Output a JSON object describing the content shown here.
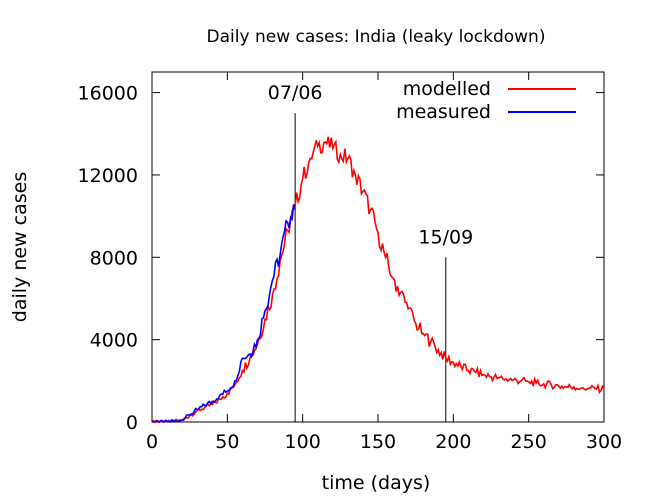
{
  "chart_data": {
    "type": "line",
    "title": "Daily new cases: India (leaky lockdown)",
    "xlabel": "time (days)",
    "ylabel": "daily new cases",
    "xlim": [
      0,
      300
    ],
    "ylim": [
      0,
      17000
    ],
    "xticks": [
      0,
      50,
      100,
      150,
      200,
      250,
      300
    ],
    "yticks": [
      0,
      4000,
      8000,
      12000,
      16000
    ],
    "legend_position": "top-right",
    "annotations": [
      {
        "label": "07/06",
        "x": 95,
        "y_top": 15000
      },
      {
        "label": "15/09",
        "x": 195,
        "y_top": 8000
      }
    ],
    "series": [
      {
        "name": "modelled",
        "color": "#ff0000",
        "x": [
          0,
          5,
          10,
          15,
          20,
          25,
          30,
          35,
          40,
          45,
          50,
          55,
          60,
          65,
          70,
          75,
          80,
          85,
          90,
          95,
          100,
          105,
          110,
          115,
          120,
          125,
          130,
          135,
          140,
          145,
          150,
          155,
          160,
          165,
          170,
          175,
          180,
          185,
          190,
          195,
          200,
          205,
          210,
          215,
          220,
          225,
          230,
          235,
          240,
          245,
          250,
          255,
          260,
          265,
          270,
          275,
          280,
          285,
          290,
          295,
          300
        ],
        "values": [
          0,
          0,
          20,
          50,
          100,
          300,
          550,
          700,
          850,
          1100,
          1400,
          1800,
          2500,
          3100,
          3800,
          5000,
          6200,
          7800,
          9300,
          10500,
          11800,
          12800,
          13400,
          13600,
          13300,
          13000,
          12800,
          12000,
          11200,
          10300,
          9200,
          8000,
          7000,
          6300,
          5500,
          4800,
          4300,
          3900,
          3500,
          3100,
          2900,
          2700,
          2500,
          2400,
          2300,
          2200,
          2150,
          2100,
          2050,
          2000,
          1950,
          1900,
          1850,
          1800,
          1750,
          1700,
          1700,
          1650,
          1650,
          1600,
          1600
        ]
      },
      {
        "name": "measured",
        "color": "#0000ff",
        "x": [
          0,
          5,
          10,
          15,
          20,
          25,
          30,
          35,
          40,
          45,
          50,
          55,
          60,
          65,
          70,
          75,
          80,
          85,
          90,
          95
        ],
        "values": [
          0,
          0,
          20,
          50,
          100,
          350,
          600,
          800,
          1000,
          1300,
          1500,
          2000,
          3100,
          3300,
          4000,
          5400,
          6900,
          8100,
          9700,
          10300
        ]
      }
    ]
  }
}
